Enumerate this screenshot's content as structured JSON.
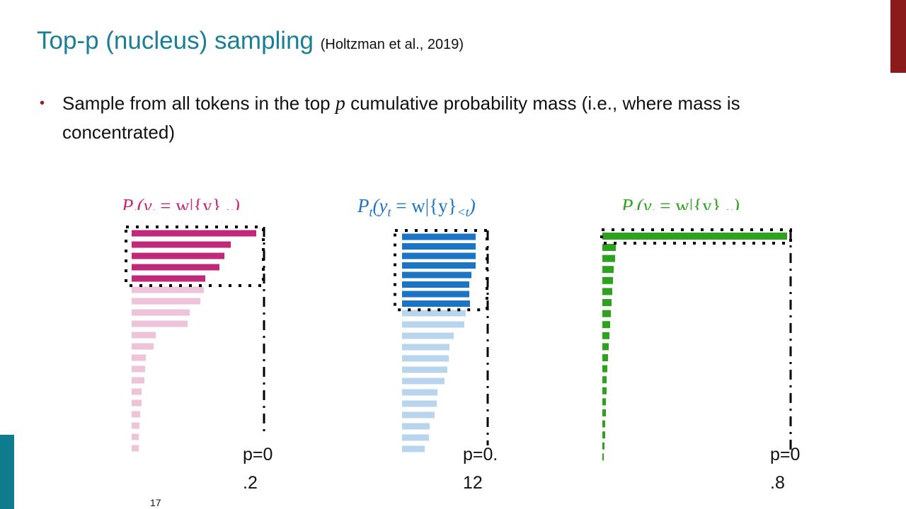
{
  "header": {
    "title": "Top-p (nucleus) sampling",
    "citation": "(Holtzman et al., 2019)"
  },
  "bullet": {
    "before": "Sample from all tokens in the top ",
    "var": "p",
    "after": " cumulative probability mass (i.e., where mass is concentrated)"
  },
  "panels": [
    {
      "formula": [
        "P",
        "t",
        "(y",
        "t",
        " = w|{y}",
        "<t",
        ")"
      ],
      "color": "#c2287a",
      "tail_color": "#efc3da",
      "nucleus": [
        176,
        140,
        131,
        124,
        104
      ],
      "tail": [
        102,
        97,
        82,
        79,
        34,
        31,
        20,
        19,
        18,
        14,
        14,
        12,
        11,
        10,
        10
      ],
      "label": [
        "p=0",
        ".2"
      ]
    },
    {
      "formula": [
        "P",
        "t",
        "(y",
        "t",
        " = w|{y}",
        "<t",
        ")"
      ],
      "color": "#1b75c4",
      "tail_color": "#b9d5ee",
      "nucleus": [
        104,
        104,
        104,
        104,
        98,
        95,
        95,
        96
      ],
      "tail": [
        90,
        88,
        73,
        67,
        66,
        64,
        60,
        50,
        49,
        46,
        39,
        38,
        32
      ],
      "label": [
        "p=0.",
        "12"
      ]
    },
    {
      "formula": [
        "P",
        "t",
        "(y",
        "t",
        " = w|{y}",
        "<t",
        ")"
      ],
      "color": "#2ea11e",
      "tail_color": "#2ea11e",
      "nucleus": [
        261
      ],
      "tail": [
        19,
        18,
        16,
        15,
        14,
        13,
        12,
        11,
        10,
        9,
        8,
        7,
        6,
        6,
        5,
        5,
        4,
        4,
        3,
        2
      ],
      "label": [
        "p=0",
        ".8"
      ]
    }
  ],
  "footer": {
    "page": "17"
  }
}
